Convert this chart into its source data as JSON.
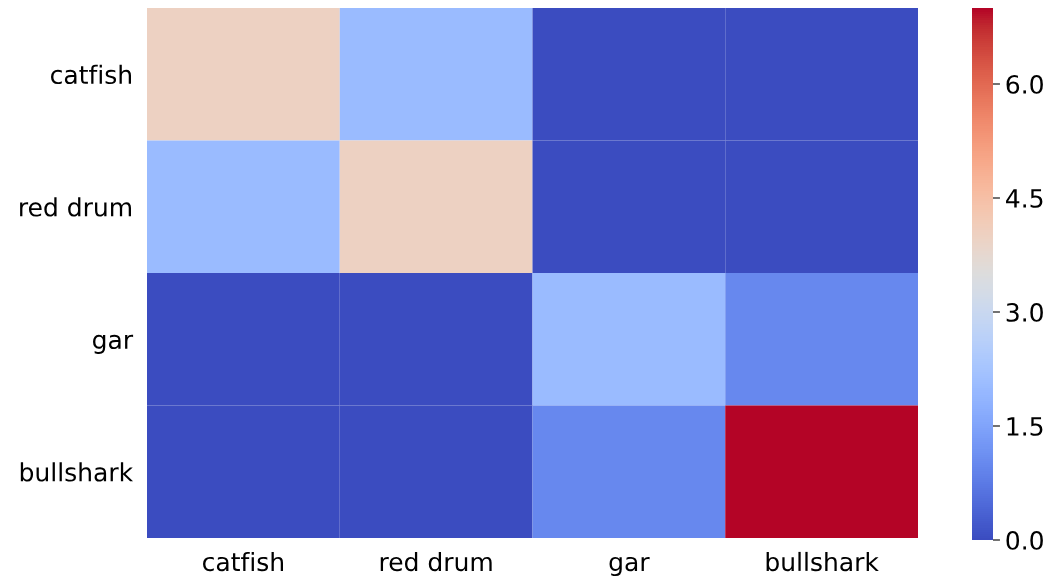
{
  "chart_data": {
    "type": "heatmap",
    "categories": [
      "catfish",
      "red drum",
      "gar",
      "bullshark"
    ],
    "y_categories": [
      "catfish",
      "red drum",
      "gar",
      "bullshark"
    ],
    "cells": [
      [
        4,
        2,
        0,
        0
      ],
      [
        2,
        4,
        0,
        0
      ],
      [
        0,
        0,
        2,
        1
      ],
      [
        0,
        0,
        1,
        7
      ]
    ],
    "clim": [
      0,
      7
    ],
    "cticks": [
      {
        "value": 0,
        "label": "0.0"
      },
      {
        "value": 1.5,
        "label": "1.5"
      },
      {
        "value": 3,
        "label": "3.0"
      },
      {
        "value": 4.5,
        "label": "4.5"
      },
      {
        "value": 6,
        "label": "6.0"
      }
    ]
  }
}
